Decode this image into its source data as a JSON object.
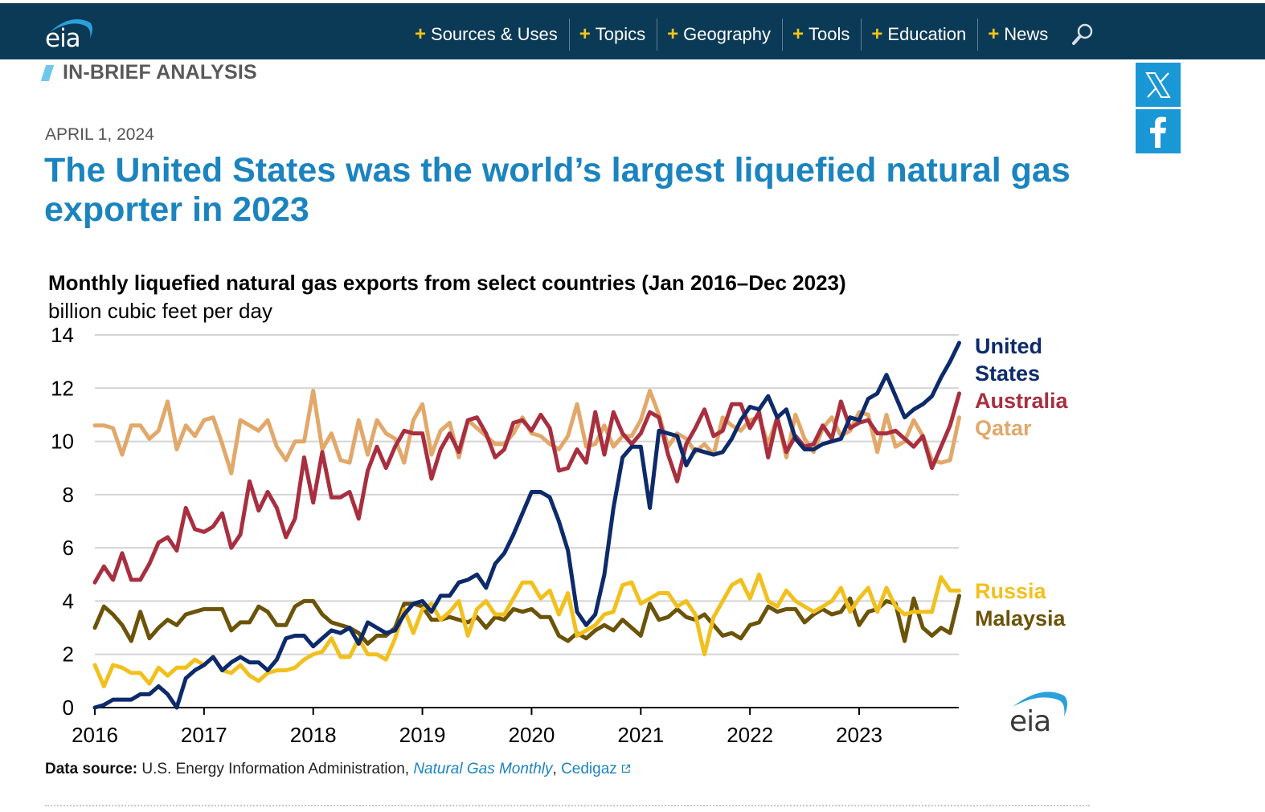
{
  "header": {
    "logo_text": "eia",
    "nav": [
      {
        "label": "Sources & Uses"
      },
      {
        "label": "Topics"
      },
      {
        "label": "Geography"
      },
      {
        "label": "Tools"
      },
      {
        "label": "Education"
      },
      {
        "label": "News"
      }
    ],
    "search_icon": "search-icon"
  },
  "kicker": "IN-BRIEF ANALYSIS",
  "share": {
    "x_icon": "x-twitter-icon",
    "facebook_icon": "facebook-icon"
  },
  "article": {
    "date": "APRIL 1, 2024",
    "headline": "The United States was the world’s largest liquefied natural gas exporter in 2023"
  },
  "source": {
    "label": "Data source:",
    "text": " U.S. Energy Information Administration, ",
    "link1": "Natural Gas Monthly",
    "sep": ", ",
    "link2": "Cedigaz",
    "external_icon": "external-link-icon"
  },
  "colors": {
    "nav_bg": "#0b3a56",
    "headline": "#1b84bf",
    "us": "#0d2a6b",
    "australia": "#a82f3f",
    "qatar": "#e2a86a",
    "russia": "#f2c01e",
    "malaysia": "#6b5308"
  },
  "chart_data": {
    "type": "line",
    "title": "Monthly liquefied natural gas exports from select countries (Jan 2016–Dec 2023)",
    "ylabel": "billion cubic feet per day",
    "xlabel": "",
    "ylim": [
      0,
      14
    ],
    "yticks": [
      "0",
      "2",
      "4",
      "6",
      "8",
      "10",
      "12",
      "14"
    ],
    "xticks": [
      "2016",
      "2017",
      "2018",
      "2019",
      "2020",
      "2021",
      "2022",
      "2023"
    ],
    "x_start": "Jan 2016",
    "x_end": "Dec 2023",
    "grid": true,
    "legend": "right, inline labels",
    "brand_logo": "eia",
    "series": [
      {
        "name": "United States",
        "label_lines": [
          "United",
          "States"
        ],
        "color": "#0d2a6b",
        "values": [
          0.0,
          0.1,
          0.3,
          0.3,
          0.3,
          0.5,
          0.5,
          0.8,
          0.5,
          0.0,
          1.1,
          1.4,
          1.6,
          1.9,
          1.4,
          1.7,
          1.9,
          1.7,
          1.7,
          1.4,
          1.8,
          2.6,
          2.7,
          2.7,
          2.3,
          2.6,
          2.9,
          2.8,
          3.0,
          2.4,
          3.2,
          3.0,
          2.8,
          2.9,
          3.5,
          3.9,
          4.0,
          3.6,
          4.2,
          4.2,
          4.7,
          4.8,
          5.0,
          4.5,
          5.4,
          5.8,
          6.5,
          7.3,
          8.1,
          8.1,
          7.9,
          7.0,
          5.9,
          3.6,
          3.1,
          3.5,
          5.0,
          7.5,
          9.4,
          9.8,
          9.8,
          7.5,
          10.4,
          10.3,
          10.2,
          9.1,
          9.7,
          9.6,
          9.5,
          9.6,
          10.1,
          10.8,
          11.3,
          11.2,
          11.7,
          10.9,
          11.2,
          10.1,
          9.7,
          9.7,
          9.9,
          10.0,
          10.1,
          10.9,
          10.8,
          11.6,
          11.8,
          12.5,
          11.7,
          10.9,
          11.2,
          11.4,
          11.7,
          12.4,
          13.0,
          13.7
        ]
      },
      {
        "name": "Australia",
        "label_lines": [
          "Australia"
        ],
        "color": "#a82f3f",
        "values": [
          4.7,
          5.3,
          4.8,
          5.8,
          4.8,
          4.8,
          5.4,
          6.2,
          6.4,
          5.9,
          7.5,
          6.7,
          6.6,
          6.8,
          7.3,
          6.0,
          6.5,
          8.5,
          7.4,
          8.1,
          7.5,
          6.4,
          7.1,
          9.4,
          7.7,
          9.6,
          7.9,
          7.9,
          8.1,
          7.1,
          8.9,
          9.8,
          9.0,
          9.8,
          10.4,
          10.3,
          10.3,
          8.6,
          9.7,
          10.3,
          9.6,
          10.8,
          10.9,
          10.3,
          9.4,
          9.7,
          10.7,
          10.8,
          10.4,
          11.0,
          10.5,
          8.9,
          9.0,
          9.7,
          9.2,
          11.1,
          9.5,
          11.1,
          10.3,
          9.9,
          10.3,
          11.1,
          10.9,
          9.5,
          8.5,
          9.9,
          10.5,
          11.2,
          10.2,
          10.4,
          11.4,
          11.4,
          10.5,
          11.1,
          9.4,
          10.9,
          9.6,
          10.2,
          9.8,
          9.9,
          10.6,
          10.1,
          11.5,
          10.5,
          10.7,
          10.8,
          10.3,
          10.3,
          10.4,
          10.1,
          9.8,
          10.2,
          9.0,
          9.8,
          10.6,
          11.8
        ]
      },
      {
        "name": "Qatar",
        "label_lines": [
          "Qatar"
        ],
        "color": "#e2a86a",
        "values": [
          10.6,
          10.6,
          10.5,
          9.5,
          10.6,
          10.6,
          10.1,
          10.4,
          11.5,
          9.7,
          10.6,
          10.2,
          10.8,
          10.9,
          9.9,
          8.8,
          10.8,
          10.6,
          10.4,
          10.8,
          9.8,
          9.3,
          10.0,
          10.0,
          11.9,
          9.7,
          10.3,
          9.3,
          9.2,
          10.8,
          9.5,
          10.8,
          10.3,
          10.1,
          9.2,
          10.8,
          11.4,
          9.5,
          10.4,
          10.7,
          9.4,
          10.8,
          10.5,
          10.2,
          9.9,
          9.9,
          10.3,
          10.9,
          10.3,
          10.2,
          9.9,
          9.7,
          10.2,
          11.4,
          9.8,
          9.9,
          10.6,
          9.8,
          10.2,
          10.2,
          10.8,
          11.9,
          11.0,
          9.8,
          10.3,
          10.1,
          9.6,
          9.9,
          9.5,
          10.9,
          10.6,
          10.4,
          10.8,
          10.9,
          9.9,
          10.9,
          9.4,
          11.0,
          10.1,
          9.6,
          10.5,
          10.9,
          10.2,
          10.4,
          11.1,
          11.0,
          9.6,
          11.0,
          9.8,
          10.0,
          10.8,
          10.2,
          9.3,
          9.2,
          9.3,
          10.9
        ]
      },
      {
        "name": "Russia",
        "label_lines": [
          "Russia"
        ],
        "color": "#f2c01e",
        "values": [
          1.6,
          0.8,
          1.6,
          1.5,
          1.3,
          1.3,
          0.9,
          1.5,
          1.2,
          1.5,
          1.5,
          1.8,
          1.6,
          1.9,
          1.4,
          1.3,
          1.6,
          1.2,
          1.0,
          1.3,
          1.4,
          1.4,
          1.5,
          1.8,
          2.0,
          2.1,
          2.6,
          1.9,
          1.9,
          2.6,
          2.0,
          2.0,
          1.8,
          2.6,
          3.7,
          2.8,
          3.7,
          3.9,
          3.3,
          3.6,
          4.0,
          2.7,
          3.7,
          4.0,
          3.5,
          3.5,
          4.1,
          4.7,
          4.7,
          4.1,
          4.4,
          3.5,
          4.3,
          2.7,
          2.9,
          3.1,
          3.5,
          3.6,
          4.6,
          4.7,
          3.9,
          4.1,
          4.3,
          4.3,
          3.8,
          4.0,
          3.5,
          2.0,
          3.4,
          4.0,
          4.6,
          4.8,
          4.1,
          5.0,
          4.0,
          3.8,
          4.4,
          4.0,
          3.8,
          3.6,
          3.8,
          4.0,
          4.5,
          3.6,
          4.1,
          4.5,
          3.6,
          4.5,
          3.8,
          3.5,
          3.6,
          3.6,
          3.6,
          4.9,
          4.4,
          4.4
        ]
      },
      {
        "name": "Malaysia",
        "label_lines": [
          "Malaysia"
        ],
        "color": "#6b5308",
        "values": [
          3.0,
          3.8,
          3.5,
          3.1,
          2.5,
          3.6,
          2.6,
          3.0,
          3.3,
          3.1,
          3.5,
          3.6,
          3.7,
          3.7,
          3.7,
          2.9,
          3.2,
          3.2,
          3.8,
          3.6,
          3.1,
          3.1,
          3.8,
          4.0,
          4.0,
          3.5,
          3.2,
          3.1,
          3.0,
          2.8,
          2.4,
          2.7,
          2.7,
          3.0,
          3.9,
          3.9,
          3.8,
          3.3,
          3.3,
          3.4,
          3.3,
          3.2,
          3.4,
          3.0,
          3.4,
          3.3,
          3.7,
          3.6,
          3.7,
          3.4,
          3.4,
          2.7,
          2.5,
          2.8,
          2.6,
          2.9,
          3.1,
          2.9,
          3.3,
          3.0,
          2.7,
          3.9,
          3.3,
          3.4,
          3.7,
          3.4,
          3.3,
          3.5,
          3.1,
          2.7,
          2.8,
          2.6,
          3.1,
          3.2,
          3.8,
          3.6,
          3.7,
          3.7,
          3.2,
          3.5,
          3.7,
          3.5,
          3.6,
          4.1,
          3.1,
          3.6,
          3.7,
          4.0,
          3.9,
          2.5,
          4.1,
          3.0,
          2.7,
          3.0,
          2.8,
          4.2
        ]
      }
    ]
  }
}
